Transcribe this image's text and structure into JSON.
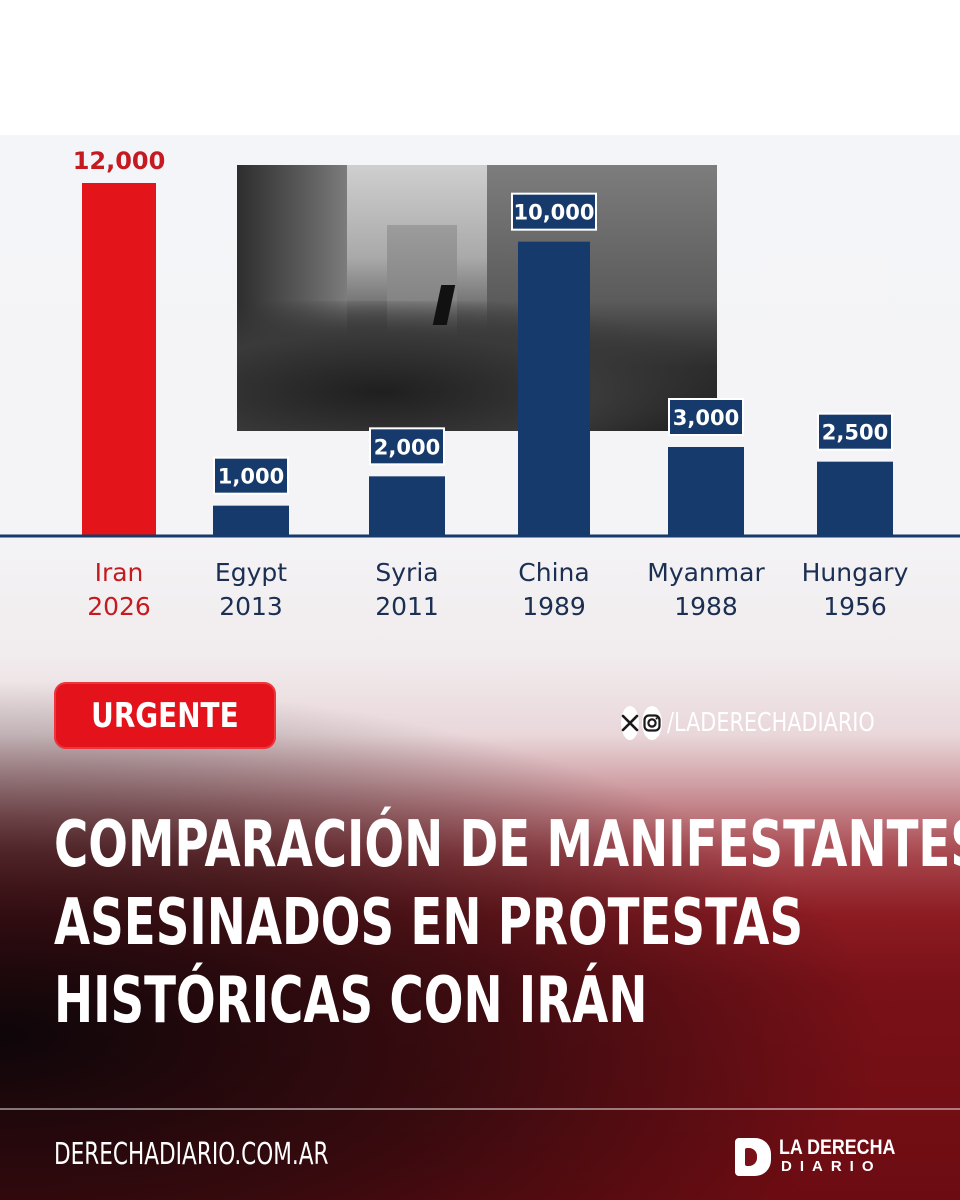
{
  "chart_data": {
    "type": "bar",
    "categories": [
      {
        "name": "Iran",
        "year": "2026"
      },
      {
        "name": "Egypt",
        "year": "2013"
      },
      {
        "name": "Syria",
        "year": "2011"
      },
      {
        "name": "China",
        "year": "1989"
      },
      {
        "name": "Myanmar",
        "year": "1988"
      },
      {
        "name": "Hungary",
        "year": "1956"
      }
    ],
    "values": [
      12000,
      1000,
      2000,
      10000,
      3000,
      2500
    ],
    "value_labels": [
      "12,000",
      "1,000",
      "2,000",
      "10,000",
      "3,000",
      "2,500"
    ],
    "ylim": [
      0,
      12000
    ],
    "grid": false,
    "highlight_category": "Iran",
    "colors": {
      "highlight": "#e3151b",
      "bar": "#163a6b",
      "label_box": "#163a6b",
      "baseline": "#163a6b",
      "highlight_text": "#c51a20",
      "category_text": "#1b2f52"
    }
  },
  "badge": {
    "label": "URGENTE"
  },
  "social": {
    "icons": [
      "x-icon",
      "instagram-icon"
    ],
    "handle": "/LADERECHADIARIO"
  },
  "headline": {
    "lines": [
      "COMPARACIÓN DE MANIFESTANTES",
      "ASESINADOS EN PROTESTAS",
      "HISTÓRICAS CON IRÁN"
    ]
  },
  "footer": {
    "site": "DERECHADIARIO.COM.AR",
    "logo_line1": "LA DERECHA",
    "logo_line2": "DIARIO"
  }
}
